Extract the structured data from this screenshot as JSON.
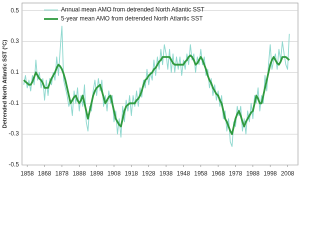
{
  "chart_data": {
    "type": "line",
    "y_label": "Detrended North Atlantic SST (°C)",
    "x": [
      1856,
      1857,
      1858,
      1859,
      1860,
      1861,
      1862,
      1863,
      1864,
      1865,
      1866,
      1867,
      1868,
      1869,
      1870,
      1871,
      1872,
      1873,
      1874,
      1875,
      1876,
      1877,
      1878,
      1879,
      1880,
      1881,
      1882,
      1883,
      1884,
      1885,
      1886,
      1887,
      1888,
      1889,
      1890,
      1891,
      1892,
      1893,
      1894,
      1895,
      1896,
      1897,
      1898,
      1899,
      1900,
      1901,
      1902,
      1903,
      1904,
      1905,
      1906,
      1907,
      1908,
      1909,
      1910,
      1911,
      1912,
      1913,
      1914,
      1915,
      1916,
      1917,
      1918,
      1919,
      1920,
      1921,
      1922,
      1923,
      1924,
      1925,
      1926,
      1927,
      1928,
      1929,
      1930,
      1931,
      1932,
      1933,
      1934,
      1935,
      1936,
      1937,
      1938,
      1939,
      1940,
      1941,
      1942,
      1943,
      1944,
      1945,
      1946,
      1947,
      1948,
      1949,
      1950,
      1951,
      1952,
      1953,
      1954,
      1955,
      1956,
      1957,
      1958,
      1959,
      1960,
      1961,
      1962,
      1963,
      1964,
      1965,
      1966,
      1967,
      1968,
      1969,
      1970,
      1971,
      1972,
      1973,
      1974,
      1975,
      1976,
      1977,
      1978,
      1979,
      1980,
      1981,
      1982,
      1983,
      1984,
      1985,
      1986,
      1987,
      1988,
      1989,
      1990,
      1991,
      1992,
      1993,
      1994,
      1995,
      1996,
      1997,
      1998,
      1999,
      2000,
      2001,
      2002,
      2003,
      2004,
      2005,
      2006,
      2007,
      2008,
      2009
    ],
    "series": [
      {
        "name": "Annual mean AMO from detrended North Atlantic SST",
        "color": "#8fd8cf",
        "width": 0.9,
        "values": [
          0.02,
          0.08,
          0.0,
          0.05,
          -0.02,
          0.08,
          0.02,
          0.18,
          0.05,
          0.1,
          0.0,
          0.06,
          -0.08,
          0.05,
          -0.05,
          0.06,
          0.02,
          0.1,
          0.05,
          0.2,
          0.08,
          0.25,
          0.4,
          0.05,
          0.0,
          -0.05,
          -0.12,
          -0.08,
          -0.18,
          -0.02,
          -0.1,
          0.0,
          -0.15,
          -0.05,
          -0.12,
          0.02,
          -0.22,
          -0.28,
          -0.12,
          -0.15,
          -0.02,
          0.05,
          -0.05,
          0.06,
          -0.02,
          0.05,
          -0.12,
          -0.05,
          -0.15,
          -0.02,
          -0.1,
          -0.05,
          -0.22,
          -0.15,
          -0.3,
          -0.2,
          -0.32,
          -0.12,
          -0.22,
          -0.08,
          -0.15,
          -0.05,
          -0.18,
          -0.05,
          -0.12,
          -0.02,
          -0.12,
          0.0,
          -0.06,
          0.05,
          0.0,
          0.12,
          0.02,
          0.1,
          0.05,
          0.18,
          0.08,
          0.2,
          0.12,
          0.25,
          0.15,
          0.28,
          0.22,
          0.12,
          0.25,
          0.1,
          0.22,
          0.1,
          0.2,
          0.12,
          0.2,
          0.08,
          0.18,
          0.12,
          0.22,
          0.15,
          0.28,
          0.18,
          0.22,
          0.1,
          0.2,
          0.15,
          0.25,
          0.15,
          0.2,
          0.08,
          0.12,
          0.0,
          0.06,
          -0.05,
          0.02,
          -0.08,
          -0.02,
          -0.12,
          -0.05,
          -0.2,
          -0.15,
          -0.28,
          -0.2,
          -0.35,
          -0.38,
          -0.22,
          -0.25,
          -0.12,
          -0.18,
          -0.12,
          -0.28,
          -0.2,
          -0.3,
          -0.15,
          -0.22,
          -0.1,
          -0.2,
          -0.05,
          -0.1,
          0.0,
          -0.15,
          -0.05,
          -0.1,
          0.08,
          -0.02,
          0.15,
          0.28,
          0.12,
          0.18,
          0.22,
          0.12,
          0.25,
          0.18,
          0.3,
          0.22,
          0.15,
          0.12,
          0.35
        ]
      },
      {
        "name": "5-year mean AMO from detrended North Atlantic SST",
        "color": "#2f9a3e",
        "width": 1.8,
        "values": [
          0.05,
          0.04,
          0.03,
          0.02,
          0.02,
          0.04,
          0.07,
          0.1,
          0.08,
          0.06,
          0.05,
          0.03,
          0.0,
          0.0,
          0.0,
          0.03,
          0.06,
          0.08,
          0.1,
          0.13,
          0.15,
          0.14,
          0.12,
          0.09,
          0.05,
          0.0,
          -0.05,
          -0.1,
          -0.08,
          -0.06,
          -0.05,
          -0.08,
          -0.1,
          -0.08,
          -0.05,
          -0.1,
          -0.15,
          -0.2,
          -0.15,
          -0.1,
          -0.05,
          -0.02,
          0.0,
          0.01,
          0.02,
          -0.02,
          -0.06,
          -0.1,
          -0.08,
          -0.06,
          -0.05,
          -0.1,
          -0.15,
          -0.2,
          -0.22,
          -0.24,
          -0.25,
          -0.2,
          -0.15,
          -0.12,
          -0.11,
          -0.1,
          -0.1,
          -0.1,
          -0.1,
          -0.08,
          -0.07,
          -0.05,
          -0.02,
          0.02,
          0.05,
          0.06,
          0.08,
          0.09,
          0.1,
          0.12,
          0.13,
          0.15,
          0.17,
          0.18,
          0.2,
          0.2,
          0.2,
          0.2,
          0.2,
          0.18,
          0.16,
          0.15,
          0.15,
          0.15,
          0.15,
          0.15,
          0.15,
          0.17,
          0.18,
          0.2,
          0.21,
          0.2,
          0.18,
          0.15,
          0.16,
          0.18,
          0.2,
          0.18,
          0.15,
          0.12,
          0.08,
          0.05,
          0.03,
          0.0,
          -0.02,
          -0.04,
          -0.05,
          -0.08,
          -0.1,
          -0.15,
          -0.2,
          -0.22,
          -0.25,
          -0.28,
          -0.3,
          -0.25,
          -0.2,
          -0.17,
          -0.15,
          -0.18,
          -0.22,
          -0.25,
          -0.22,
          -0.2,
          -0.18,
          -0.16,
          -0.15,
          -0.1,
          -0.05,
          -0.07,
          -0.1,
          -0.1,
          -0.05,
          0.0,
          0.05,
          0.1,
          0.15,
          0.18,
          0.2,
          0.18,
          0.16,
          0.15,
          0.17,
          0.2,
          0.2,
          0.2,
          0.19,
          0.18
        ]
      }
    ],
    "xlim": [
      1855,
      2014
    ],
    "xticks": [
      1858,
      1868,
      1878,
      1888,
      1898,
      1908,
      1918,
      1928,
      1938,
      1948,
      1958,
      1968,
      1978,
      1988,
      1998,
      2008
    ],
    "ylim": [
      -0.5,
      0.55
    ],
    "yticks": [
      0.5,
      0.3,
      0.1,
      -0.1,
      -0.3,
      -0.5
    ],
    "grid": true,
    "legend": "top-left"
  }
}
